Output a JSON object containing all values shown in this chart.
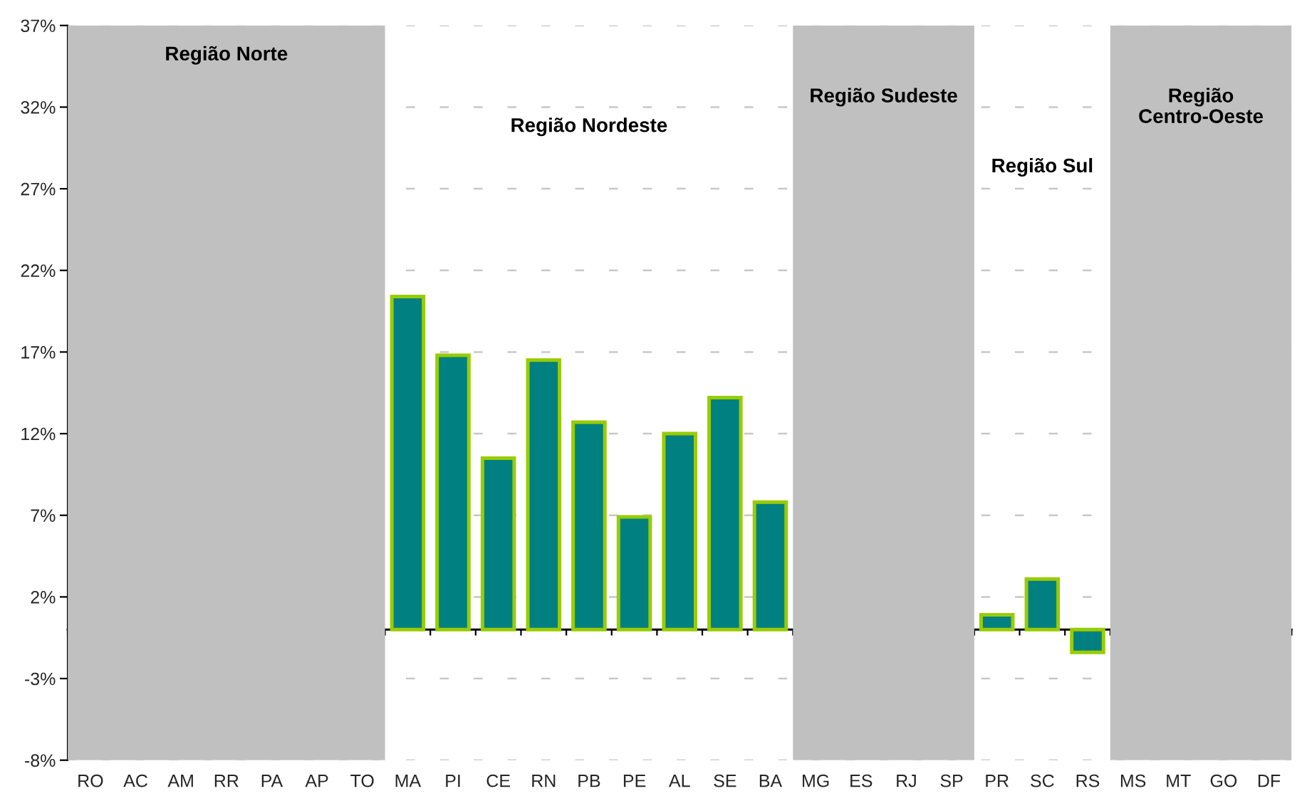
{
  "chart_data": {
    "type": "bar",
    "categories": [
      "RO",
      "AC",
      "AM",
      "RR",
      "PA",
      "AP",
      "TO",
      "MA",
      "PI",
      "CE",
      "RN",
      "PB",
      "PE",
      "AL",
      "SE",
      "BA",
      "MG",
      "ES",
      "RJ",
      "SP",
      "PR",
      "SC",
      "RS",
      "MS",
      "MT",
      "GO",
      "DF"
    ],
    "values": [
      null,
      null,
      null,
      null,
      null,
      null,
      null,
      20.4,
      16.8,
      10.5,
      16.5,
      12.7,
      6.9,
      12.0,
      14.2,
      7.8,
      null,
      null,
      null,
      null,
      0.9,
      3.1,
      -1.4,
      null,
      null,
      null,
      null
    ],
    "color": "#008080",
    "ylim": [
      -8,
      37
    ],
    "yticks": [
      {
        "value": -8,
        "label": "-8%"
      },
      {
        "value": -3,
        "label": "-3%"
      },
      {
        "value": 2,
        "label": "2%"
      },
      {
        "value": 7,
        "label": "7%"
      },
      {
        "value": 12,
        "label": "12%"
      },
      {
        "value": 17,
        "label": "17%"
      },
      {
        "value": 22,
        "label": "22%"
      },
      {
        "value": 27,
        "label": "27%"
      },
      {
        "value": 32,
        "label": "32%"
      },
      {
        "value": 37,
        "label": "37%"
      }
    ],
    "grid": "y",
    "bands": [
      {
        "axis": "x",
        "from": "RO",
        "to": "TO",
        "label": "Região Norte",
        "color": "#c0c0c0"
      },
      {
        "axis": "x",
        "from": "MG",
        "to": "SP",
        "label": "Região Sudeste",
        "color": "#c0c0c0"
      },
      {
        "axis": "x",
        "from": "MS",
        "to": "DF",
        "label": "Região\nCentro-Oeste",
        "color": "#c0c0c0"
      }
    ],
    "annotations": [
      "Região Nordeste",
      "Região Sul"
    ]
  }
}
